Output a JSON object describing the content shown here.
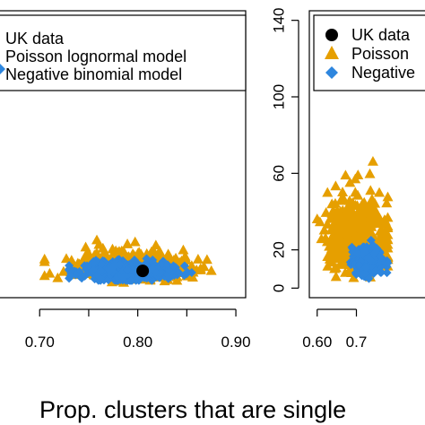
{
  "colors": {
    "uk": "#000000",
    "poisson": "#e69f00",
    "negbin": "#2e86de"
  },
  "chart_data": [
    {
      "type": "scatter",
      "panel": "left",
      "xlim": [
        0.655,
        0.91
      ],
      "ylim": [
        -5,
        145
      ],
      "x_ticks": [
        "0.70",
        "0.80",
        "0.90"
      ],
      "x_tick_values": [
        0.7,
        0.8,
        0.9
      ],
      "legend": {
        "placement": "top",
        "entries": [
          "UK data",
          "Poisson lognormal model",
          "Negative binomial model"
        ]
      },
      "series": [
        {
          "name": "UK data",
          "marker": "circle",
          "color": "#000000",
          "points": [
            [
              0.805,
              9
            ]
          ]
        },
        {
          "name": "Poisson lognormal model",
          "marker": "triangle",
          "color": "#e69f00",
          "cloud": {
            "x_range": [
              0.705,
              0.875
            ],
            "y_range": [
              3,
              28
            ],
            "center": [
              0.79,
              10
            ]
          }
        },
        {
          "name": "Negative binomial model",
          "marker": "diamond",
          "color": "#2e86de",
          "cloud": {
            "x_range": [
              0.73,
              0.855
            ],
            "y_range": [
              4,
              16
            ],
            "center": [
              0.79,
              9
            ]
          }
        }
      ]
    },
    {
      "type": "scatter",
      "panel": "right",
      "xlim": [
        0.58,
        0.9
      ],
      "ylim": [
        -5,
        145
      ],
      "x_ticks": [
        "0.60",
        "0.7"
      ],
      "x_tick_values": [
        0.6,
        0.7
      ],
      "y_ticks": [
        "0",
        "20",
        "60",
        "100",
        "140"
      ],
      "y_tick_values": [
        0,
        20,
        60,
        100,
        140
      ],
      "legend": {
        "placement": "top",
        "entries": [
          "UK data",
          "Poisson",
          "Negative"
        ]
      },
      "series": [
        {
          "name": "UK data",
          "marker": "circle",
          "color": "#000000",
          "points": []
        },
        {
          "name": "Poisson",
          "marker": "triangle",
          "color": "#e69f00",
          "cloud": {
            "x_range": [
              0.6,
              0.78
            ],
            "y_range": [
              5,
              78
            ],
            "center": [
              0.7,
              20
            ]
          }
        },
        {
          "name": "Negative",
          "marker": "diamond",
          "color": "#2e86de",
          "cloud": {
            "x_range": [
              0.665,
              0.78
            ],
            "y_range": [
              5,
              25
            ],
            "center": [
              0.73,
              14
            ]
          }
        }
      ]
    }
  ],
  "xlabel": "Prop. clusters that are single"
}
